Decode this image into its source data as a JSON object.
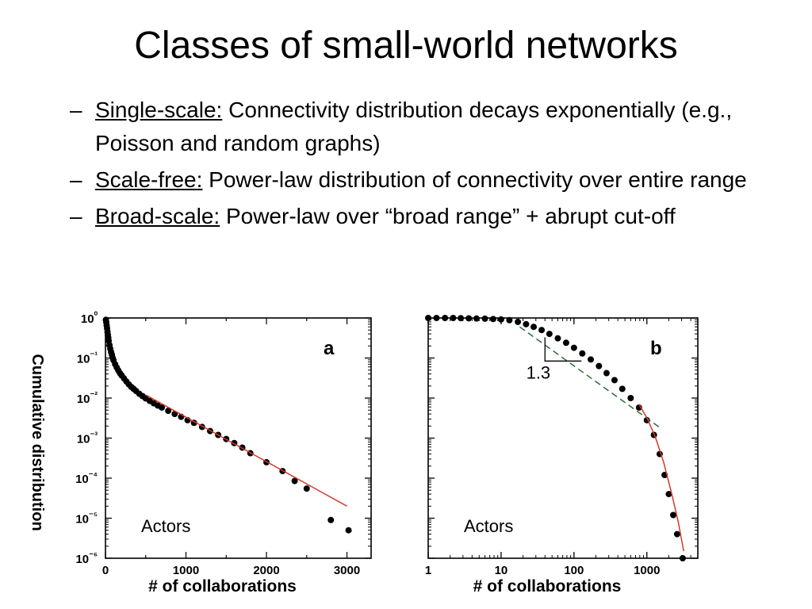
{
  "slide": {
    "title": "Classes of small-world networks",
    "bullets": [
      {
        "dash": "–",
        "term": "Single-scale:",
        "text": " Connectivity distribution decays exponentially (e.g., Poisson and random graphs)"
      },
      {
        "dash": "–",
        "term": "Scale-free:",
        "text": " Power-law distribution of connectivity over entire range"
      },
      {
        "dash": "–",
        "term": "Broad-scale:",
        "text": " Power-law over “broad range” + abrupt cut-off"
      }
    ]
  },
  "chart_data": [
    {
      "type": "scatter",
      "panel_label": "a",
      "annotation": "Actors",
      "xlabel": "# of collaborations",
      "ylabel": "Cumulative distribution",
      "xscale": "linear",
      "yscale": "log",
      "xlim": [
        0,
        3300
      ],
      "ylim": [
        1e-06,
        1
      ],
      "x_ticks": [
        "0",
        "1000",
        "2000",
        "3000"
      ],
      "y_ticks": [
        "10⁰",
        "10⁻¹",
        "10⁻²",
        "10⁻³",
        "10⁻⁴",
        "10⁻⁵",
        "10⁻⁶"
      ],
      "series": [
        {
          "style": "points",
          "x": [
            5,
            10,
            15,
            20,
            25,
            30,
            35,
            40,
            50,
            60,
            70,
            80,
            90,
            100,
            120,
            140,
            160,
            180,
            200,
            230,
            260,
            290,
            320,
            350,
            380,
            420,
            460,
            500,
            550,
            600,
            650,
            700,
            780,
            860,
            940,
            1020,
            1100,
            1200,
            1300,
            1400,
            1500,
            1600,
            1700,
            1800,
            2000,
            2200,
            2350,
            2500,
            2800,
            3020
          ],
          "y": [
            0.9,
            0.78,
            0.65,
            0.55,
            0.45,
            0.38,
            0.32,
            0.27,
            0.21,
            0.17,
            0.14,
            0.12,
            0.1,
            0.088,
            0.07,
            0.058,
            0.049,
            0.042,
            0.037,
            0.031,
            0.026,
            0.022,
            0.019,
            0.017,
            0.015,
            0.0128,
            0.0112,
            0.0098,
            0.0085,
            0.0074,
            0.0065,
            0.0058,
            0.0048,
            0.004,
            0.0034,
            0.0028,
            0.0024,
            0.0019,
            0.0015,
            0.0012,
            0.00095,
            0.00075,
            0.00058,
            0.00042,
            0.00025,
            0.00015,
            8.5e-05,
            5.5e-05,
            9e-06,
            5e-06
          ]
        },
        {
          "style": "fit-line",
          "color": "#d23a2a",
          "x": [
            500,
            3000
          ],
          "y": [
            0.012,
            2e-05
          ]
        }
      ]
    },
    {
      "type": "scatter",
      "panel_label": "b",
      "annotation": "Actors",
      "slope_label": "1.3",
      "xlabel": "# of collaborations",
      "xscale": "log",
      "yscale": "log",
      "xlim": [
        1,
        5000
      ],
      "ylim": [
        1e-06,
        1
      ],
      "x_ticks": [
        "1",
        "10",
        "100",
        "1000"
      ],
      "series": [
        {
          "style": "points",
          "x": [
            1,
            1.3,
            1.7,
            2.2,
            2.8,
            3.6,
            4.6,
            6,
            7.8,
            10,
            13,
            17,
            22,
            28,
            36,
            46,
            60,
            78,
            100,
            130,
            170,
            220,
            280,
            360,
            460,
            600,
            780,
            1000,
            1250,
            1500,
            1750,
            2000,
            2300,
            2600,
            3100
          ],
          "y": [
            1,
            1,
            1,
            1,
            0.99,
            0.98,
            0.97,
            0.96,
            0.94,
            0.92,
            0.88,
            0.8,
            0.7,
            0.6,
            0.5,
            0.4,
            0.31,
            0.24,
            0.18,
            0.13,
            0.092,
            0.063,
            0.042,
            0.028,
            0.017,
            0.01,
            0.0058,
            0.0028,
            0.0012,
            0.0004,
            0.00012,
            4e-05,
            1.2e-05,
            4e-06,
            1e-06
          ]
        },
        {
          "style": "dashed-fit",
          "color": "#2f6b3a",
          "x": [
            18,
            1600
          ],
          "y": [
            0.6,
            0.0017
          ]
        },
        {
          "style": "cutoff-fit",
          "color": "#d23a2a",
          "x": [
            780,
            1000,
            1300,
            1700,
            2200,
            2700,
            3200
          ],
          "y": [
            0.007,
            0.0032,
            0.0011,
            0.00025,
            4e-05,
            8e-06,
            1.5e-06
          ]
        }
      ]
    }
  ]
}
